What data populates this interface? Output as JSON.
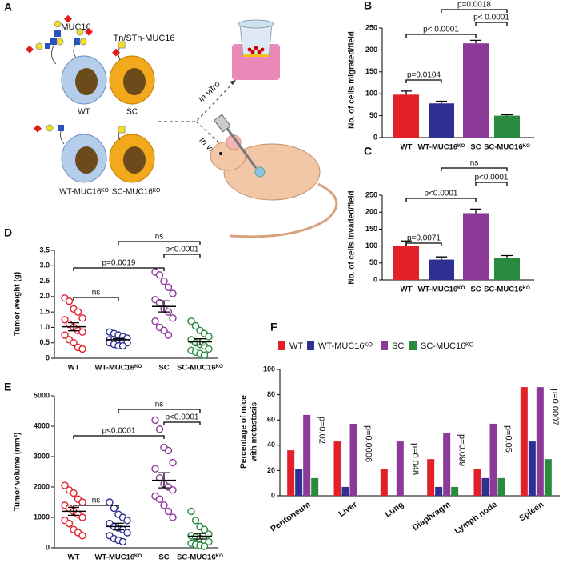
{
  "diagram": {
    "panel": "A",
    "muc16": "MUC16",
    "tn": "Tn/STn-MUC16",
    "wt": "WT",
    "sc": "SC",
    "wt_ko": "WT-MUC16ᴷᴼ",
    "sc_ko": "SC-MUC16ᴷᴼ",
    "in_vitro": "In vitro",
    "in_vivo": "In vivo"
  },
  "chart_data": [
    {
      "panel": "B",
      "type": "bar",
      "ylabel": "No. of cells migrated/field",
      "categories": [
        "WT",
        "WT-MUC16ᴷᴼ",
        "SC",
        "SC-MUC16ᴷᴼ"
      ],
      "values": [
        98,
        78,
        215,
        50
      ],
      "errors": [
        8,
        5,
        7,
        2
      ],
      "colors": [
        "#e3202a",
        "#2e3192",
        "#8b3a98",
        "#2a8a3e"
      ],
      "ylim": [
        0,
        250
      ],
      "yticks": [
        0,
        50,
        100,
        150,
        200,
        250
      ],
      "annotations": [
        {
          "text": "p=0.0104",
          "between": [
            "WT",
            "WT-MUC16ᴷᴼ"
          ]
        },
        {
          "text": "p< 0.0001",
          "between": [
            "WT",
            "SC"
          ]
        },
        {
          "text": "p< 0.0001",
          "between": [
            "SC",
            "SC-MUC16ᴷᴼ"
          ]
        },
        {
          "text": "p=0.0018",
          "between": [
            "WT-MUC16ᴷᴼ",
            "SC-MUC16ᴷᴼ"
          ]
        }
      ]
    },
    {
      "panel": "C",
      "type": "bar",
      "ylabel": "No. of cells invaded/field",
      "categories": [
        "WT",
        "WT-MUC16ᴷᴼ",
        "SC",
        "SC-MUC16ᴷᴼ"
      ],
      "values": [
        100,
        60,
        197,
        64
      ],
      "errors": [
        15,
        8,
        12,
        8
      ],
      "colors": [
        "#e3202a",
        "#2e3192",
        "#8b3a98",
        "#2a8a3e"
      ],
      "ylim": [
        0,
        250
      ],
      "yticks": [
        0,
        50,
        100,
        150,
        200,
        250
      ],
      "annotations": [
        {
          "text": "p=0.0071",
          "between": [
            "WT",
            "WT-MUC16ᴷᴼ"
          ]
        },
        {
          "text": "p<0.0001",
          "between": [
            "WT",
            "SC"
          ]
        },
        {
          "text": "p<0.0001",
          "between": [
            "SC",
            "SC-MUC16ᴷᴼ"
          ]
        },
        {
          "text": "ns",
          "between": [
            "WT-MUC16ᴷᴼ",
            "SC-MUC16ᴷᴼ"
          ]
        }
      ]
    },
    {
      "panel": "D",
      "type": "scatter",
      "ylabel": "Tumor weight (g)",
      "categories": [
        "WT",
        "WT-MUC16ᴷᴼ",
        "SC",
        "SC-MUC16ᴷᴼ"
      ],
      "series": [
        {
          "color": "#e3202a",
          "values": [
            1.95,
            1.85,
            1.6,
            1.5,
            1.3,
            1.25,
            1.1,
            1.0,
            0.9,
            0.85,
            0.75,
            0.6,
            0.5,
            0.35,
            0.3
          ],
          "mean": 1.02,
          "sem": 0.13
        },
        {
          "color": "#2e3192",
          "values": [
            0.85,
            0.8,
            0.75,
            0.7,
            0.65,
            0.6,
            0.6,
            0.55,
            0.55,
            0.5,
            0.5,
            0.45,
            0.4,
            0.4
          ],
          "mean": 0.6,
          "sem": 0.04
        },
        {
          "color": "#8b3a98",
          "values": [
            2.8,
            2.7,
            2.5,
            2.3,
            2.1,
            1.9,
            1.8,
            1.6,
            1.5,
            1.3,
            1.2,
            1.0,
            0.9,
            0.75
          ],
          "mean": 1.68,
          "sem": 0.18
        },
        {
          "color": "#2a8a3e",
          "values": [
            1.2,
            1.05,
            0.9,
            0.8,
            0.7,
            0.6,
            0.5,
            0.45,
            0.4,
            0.3,
            0.25,
            0.2,
            0.15,
            0.1
          ],
          "mean": 0.53,
          "sem": 0.1
        }
      ],
      "ylim": [
        0,
        3.5
      ],
      "yticks": [
        0,
        0.5,
        {
          "value": 1,
          "label": "1.0"
        },
        1.5,
        {
          "value": 2,
          "label": "2.0"
        },
        2.5,
        {
          "value": 3,
          "label": "3.0"
        },
        3.5
      ],
      "annotations": [
        {
          "text": "ns",
          "between": [
            "WT",
            "WT-MUC16ᴷᴼ"
          ]
        },
        {
          "text": "p=0.0019",
          "between": [
            "WT",
            "SC"
          ]
        },
        {
          "text": "p<0.0001",
          "between": [
            "SC",
            "SC-MUC16ᴷᴼ"
          ]
        },
        {
          "text": "ns",
          "between": [
            "WT-MUC16ᴷᴼ",
            "SC-MUC16ᴷᴼ"
          ]
        }
      ]
    },
    {
      "panel": "E",
      "type": "scatter",
      "ylabel": "Tumor volume (mm³)",
      "categories": [
        "WT",
        "WT-MUC16ᴷᴼ",
        "SC",
        "SC-MUC16ᴷᴼ"
      ],
      "series": [
        {
          "color": "#e3202a",
          "values": [
            2050,
            1900,
            1800,
            1600,
            1500,
            1400,
            1300,
            1200,
            1100,
            1000,
            900,
            800,
            600,
            500,
            400
          ],
          "mean": 1200,
          "sem": 130
        },
        {
          "color": "#2e3192",
          "values": [
            1500,
            1300,
            1100,
            1000,
            900,
            800,
            700,
            650,
            600,
            500,
            400,
            300,
            250,
            200
          ],
          "mean": 700,
          "sem": 110
        },
        {
          "color": "#8b3a98",
          "values": [
            4200,
            3900,
            3300,
            3200,
            2800,
            2600,
            2300,
            2100,
            2000,
            1900,
            1700,
            1600,
            1400,
            1200,
            1000
          ],
          "mean": 2220,
          "sem": 250
        },
        {
          "color": "#2a8a3e",
          "values": [
            1200,
            900,
            700,
            600,
            450,
            400,
            350,
            300,
            250,
            200,
            150,
            100,
            80,
            50
          ],
          "mean": 380,
          "sem": 90
        }
      ],
      "ylim": [
        0,
        5000
      ],
      "yticks": [
        0,
        1000,
        2000,
        3000,
        4000,
        5000
      ],
      "annotations": [
        {
          "text": "ns",
          "between": [
            "WT",
            "WT-MUC16ᴷᴼ"
          ]
        },
        {
          "text": "p<0.0001",
          "between": [
            "WT",
            "SC"
          ]
        },
        {
          "text": "p<0.0001",
          "between": [
            "SC",
            "SC-MUC16ᴷᴼ"
          ]
        },
        {
          "text": "ns",
          "between": [
            "WT-MUC16ᴷᴼ",
            "SC-MUC16ᴷᴼ"
          ]
        }
      ]
    },
    {
      "panel": "F",
      "type": "bar",
      "ylabel": [
        "Percentage of mice",
        "with metastasis"
      ],
      "categories": [
        "Peritoneum",
        "Liver",
        "Lung",
        "Diaphragm",
        "Lymph node",
        "Spleen"
      ],
      "series": [
        {
          "name": "WT",
          "color": "#e3202a",
          "values": [
            36,
            43,
            21,
            29,
            21,
            86
          ]
        },
        {
          "name": "WT-MUC16ᴷᴼ",
          "color": "#2e3192",
          "values": [
            21,
            7,
            0,
            7,
            14,
            43
          ]
        },
        {
          "name": "SC",
          "color": "#8b3a98",
          "values": [
            64,
            57,
            43,
            50,
            57,
            86
          ]
        },
        {
          "name": "SC-MUC16ᴷᴼ",
          "color": "#2a8a3e",
          "values": [
            14,
            0,
            0,
            7,
            14,
            29
          ]
        }
      ],
      "annotations": [
        "p=0.02",
        "p=0.0006",
        "p=0.048",
        "p=0.099",
        "p=0.05",
        "p=0.0007"
      ],
      "ylim": [
        0,
        100
      ],
      "yticks": [
        0,
        20,
        40,
        60,
        80,
        100
      ],
      "legend": "top"
    }
  ]
}
